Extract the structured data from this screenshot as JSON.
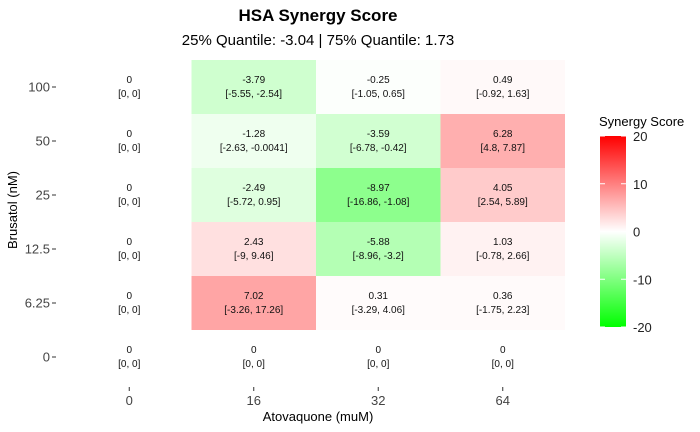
{
  "chart_data": {
    "type": "heatmap",
    "title": "HSA Synergy Score",
    "subtitle": "25% Quantile: -3.04 | 75% Quantile: 1.73",
    "xlabel": "Atovaquone (muM)",
    "ylabel": "Brusatol (nM)",
    "x_categories": [
      "0",
      "16",
      "32",
      "64"
    ],
    "y_categories": [
      "100",
      "50",
      "25",
      "12.5",
      "6.25",
      "0"
    ],
    "cells": [
      [
        {
          "value": "0",
          "ci": "[0, 0]"
        },
        {
          "value": "-3.79",
          "ci": "[-5.55, -2.54]"
        },
        {
          "value": "-0.25",
          "ci": "[-1.05, 0.65]"
        },
        {
          "value": "0.49",
          "ci": "[-0.92, 1.63]"
        }
      ],
      [
        {
          "value": "0",
          "ci": "[0, 0]"
        },
        {
          "value": "-1.28",
          "ci": "[-2.63, -0.0041]"
        },
        {
          "value": "-3.59",
          "ci": "[-6.78, -0.42]"
        },
        {
          "value": "6.28",
          "ci": "[4.8, 7.87]"
        }
      ],
      [
        {
          "value": "0",
          "ci": "[0, 0]"
        },
        {
          "value": "-2.49",
          "ci": "[-5.72, 0.95]"
        },
        {
          "value": "-8.97",
          "ci": "[-16.86, -1.08]"
        },
        {
          "value": "4.05",
          "ci": "[2.54, 5.89]"
        }
      ],
      [
        {
          "value": "0",
          "ci": "[0, 0]"
        },
        {
          "value": "2.43",
          "ci": "[-9, 9.46]"
        },
        {
          "value": "-5.88",
          "ci": "[-8.96, -3.2]"
        },
        {
          "value": "1.03",
          "ci": "[-0.78, 2.66]"
        }
      ],
      [
        {
          "value": "0",
          "ci": "[0, 0]"
        },
        {
          "value": "7.02",
          "ci": "[-3.26, 17.26]"
        },
        {
          "value": "0.31",
          "ci": "[-3.29, 4.06]"
        },
        {
          "value": "0.36",
          "ci": "[-1.75, 2.23]"
        }
      ],
      [
        {
          "value": "0",
          "ci": "[0, 0]"
        },
        {
          "value": "0",
          "ci": "[0, 0]"
        },
        {
          "value": "0",
          "ci": "[0, 0]"
        },
        {
          "value": "0",
          "ci": "[0, 0]"
        }
      ]
    ],
    "legend": {
      "title": "Synergy Score",
      "ticks": [
        "20",
        "10",
        "0",
        "-10",
        "-20"
      ],
      "range": [
        -20,
        20
      ],
      "placement": "right"
    },
    "colors": {
      "high": "#ff0000",
      "mid": "#ffffff",
      "low": "#00ff00"
    }
  }
}
